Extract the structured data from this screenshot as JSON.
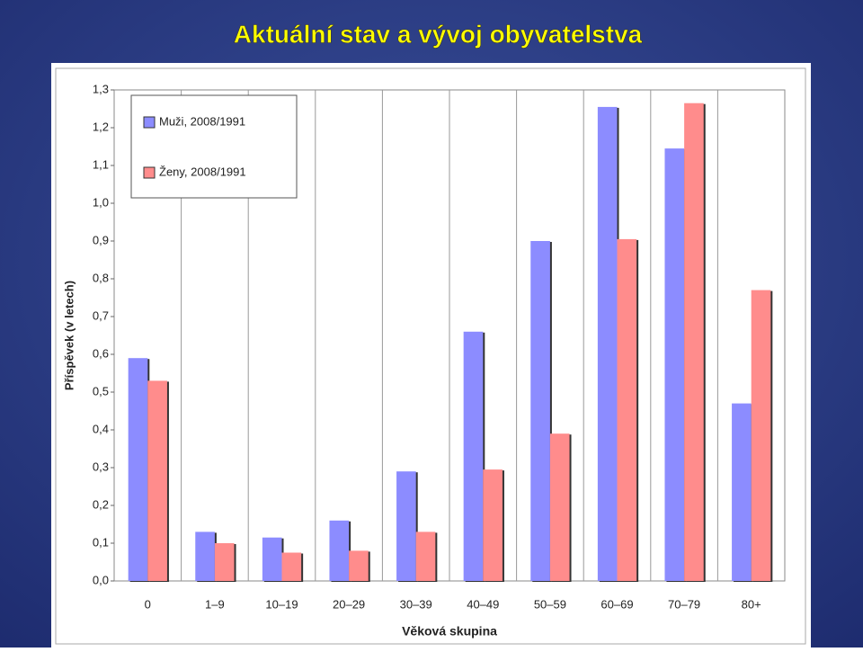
{
  "chart_data": {
    "type": "bar",
    "title": "Aktuální stav a vývoj obyvatelstva",
    "x_label": "Věková skupina",
    "y_label": "Příspěvek (v letech)",
    "categories": [
      "0",
      "1–9",
      "10–19",
      "20–29",
      "30–39",
      "40–49",
      "50–59",
      "60–69",
      "70–79",
      "80+"
    ],
    "series": [
      {
        "name": "Muži, 2008/1991",
        "color": "#8c8cff",
        "values": [
          0.59,
          0.13,
          0.115,
          0.16,
          0.29,
          0.66,
          0.9,
          1.255,
          1.145,
          0.47
        ]
      },
      {
        "name": "Ženy, 2008/1991",
        "color": "#ff8c8c",
        "values": [
          0.53,
          0.1,
          0.075,
          0.08,
          0.13,
          0.295,
          0.39,
          0.905,
          1.265,
          0.77
        ]
      }
    ],
    "ylim": [
      0,
      1.3
    ],
    "yticks": [
      {
        "value": 0,
        "label": "0,0"
      },
      {
        "value": 0.1,
        "label": "0,1"
      },
      {
        "value": 0.2,
        "label": "0,2"
      },
      {
        "value": 0.3,
        "label": "0,3"
      },
      {
        "value": 0.4,
        "label": "0,4"
      },
      {
        "value": 0.5,
        "label": "0,5"
      },
      {
        "value": 0.6,
        "label": "0,6"
      },
      {
        "value": 0.7,
        "label": "0,7"
      },
      {
        "value": 0.8,
        "label": "0,8"
      },
      {
        "value": 0.9,
        "label": "0,9"
      },
      {
        "value": 1.0,
        "label": "1,0"
      },
      {
        "value": 1.1,
        "label": "1,1"
      },
      {
        "value": 1.2,
        "label": "1,2"
      },
      {
        "value": 1.3,
        "label": "1,3"
      }
    ],
    "grid": true,
    "legend": "top-left"
  }
}
